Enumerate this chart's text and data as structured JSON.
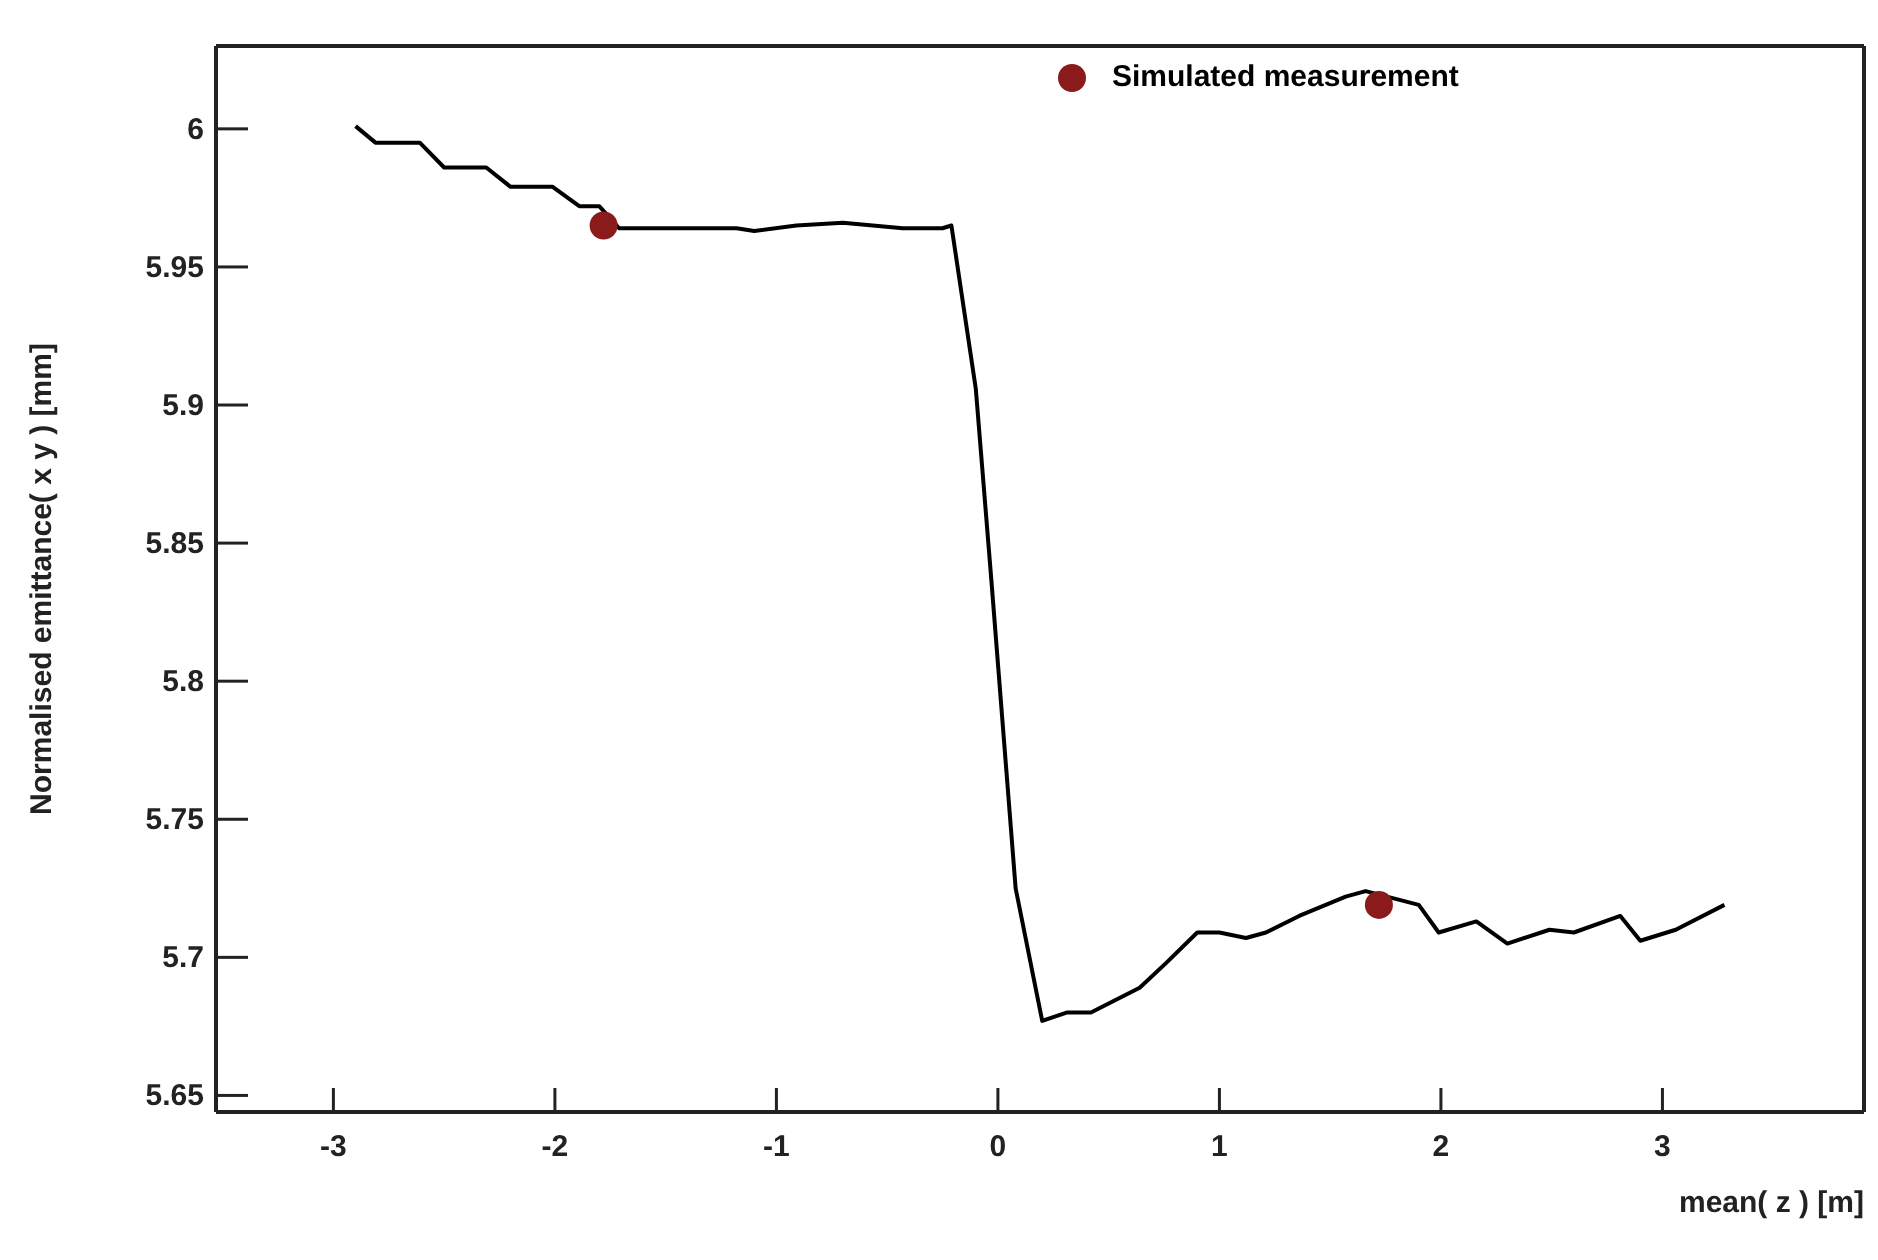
{
  "chart_data": {
    "type": "line",
    "xlabel": "mean( z ) [m]",
    "ylabel": "Normalised emittance( x y ) [mm]",
    "xlim": [
      -3.53,
      3.91
    ],
    "xticks": [
      -3,
      -2,
      -1,
      0,
      1,
      2,
      3
    ],
    "ylim": [
      5.644,
      6.03
    ],
    "yticks": [
      5.65,
      5.7,
      5.75,
      5.8,
      5.85,
      5.9,
      5.95,
      6
    ],
    "legend": "top",
    "series": [
      {
        "color": "#000000",
        "marker": "none",
        "x": [
          -2.9,
          -2.81,
          -2.61,
          -2.5,
          -2.31,
          -2.2,
          -2.01,
          -1.89,
          -1.8,
          -1.71,
          -1.18,
          -1.1,
          -0.91,
          -0.7,
          -0.43,
          -0.25,
          -0.21,
          -0.1,
          -0.03,
          0.08,
          0.2,
          0.31,
          0.42,
          0.64,
          0.76,
          0.9,
          1.0,
          1.12,
          1.21,
          1.36,
          1.57,
          1.66,
          1.9,
          1.99,
          2.16,
          2.3,
          2.49,
          2.6,
          2.81,
          2.9,
          3.06,
          3.28
        ],
        "values": [
          6.001,
          5.995,
          5.995,
          5.986,
          5.986,
          5.979,
          5.979,
          5.972,
          5.972,
          5.964,
          5.964,
          5.963,
          5.965,
          5.966,
          5.964,
          5.964,
          5.965,
          5.906,
          5.837,
          5.725,
          5.677,
          5.68,
          5.68,
          5.689,
          5.698,
          5.709,
          5.709,
          5.707,
          5.709,
          5.715,
          5.722,
          5.724,
          5.719,
          5.709,
          5.713,
          5.705,
          5.71,
          5.709,
          5.715,
          5.706,
          5.71,
          5.719
        ]
      },
      {
        "type": "scatter",
        "name": "Simulated measurement",
        "color": "#8b1a1a",
        "marker": "circle",
        "x": [
          -1.78,
          1.72
        ],
        "values": [
          5.965,
          5.719
        ]
      }
    ]
  }
}
